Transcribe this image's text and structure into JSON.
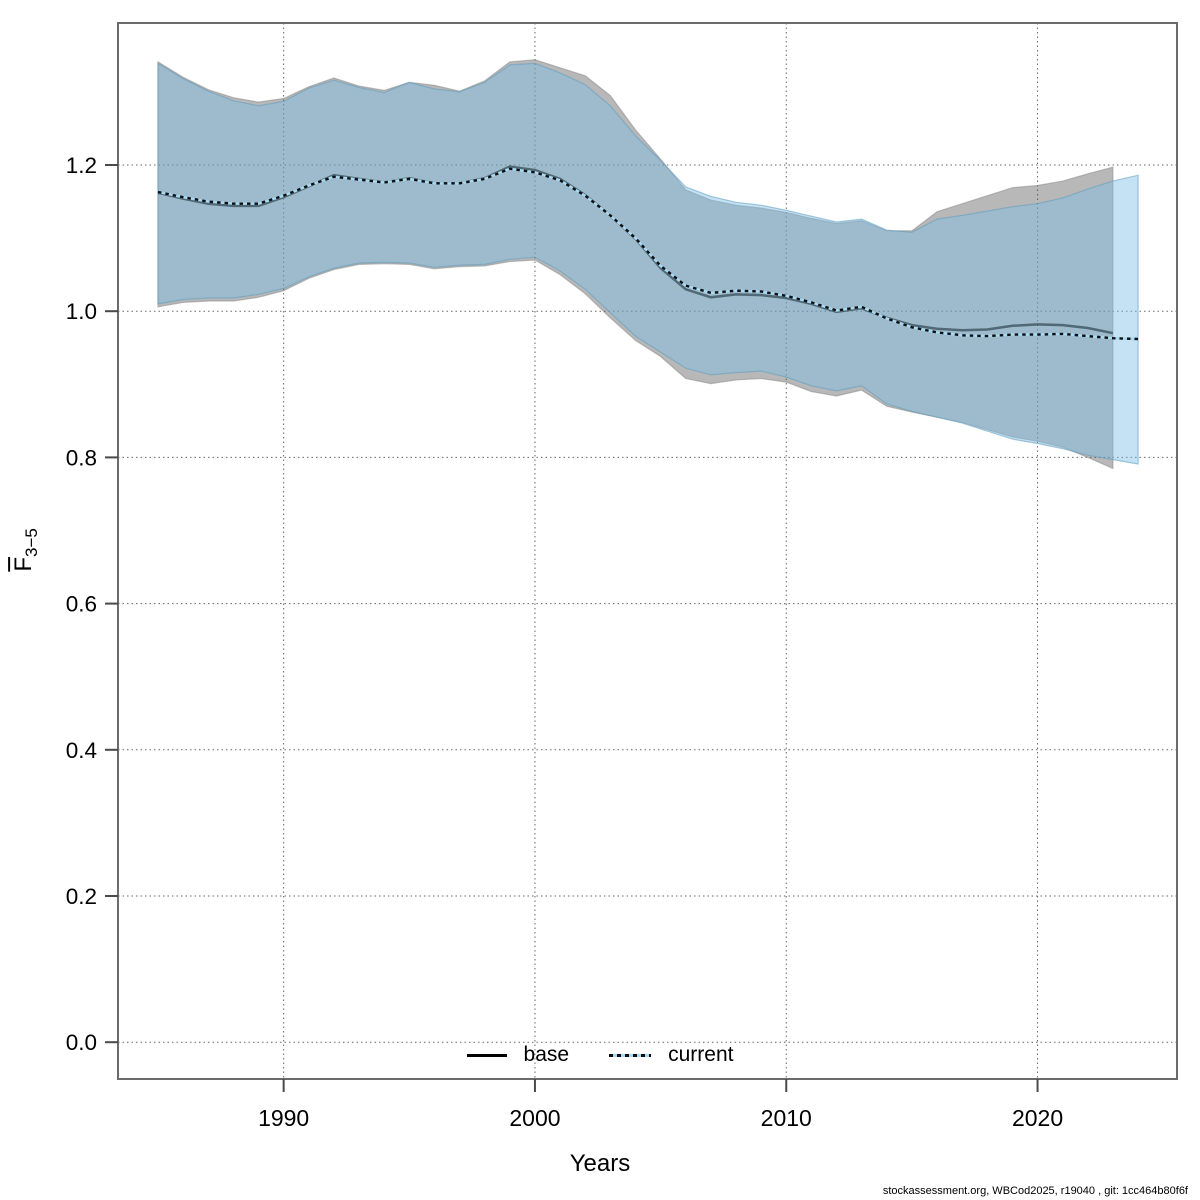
{
  "footer": {
    "text": "stockassessment.org, WBCod2025, r19040 , git: 1cc464b80f6f"
  },
  "chart_data": {
    "type": "line",
    "title": "",
    "xlabel": "Years",
    "ylabel": {
      "main": "F",
      "overline": true,
      "sub": "3−5"
    },
    "xlim": [
      1983.4,
      2025.6
    ],
    "ylim": [
      -0.05,
      1.39
    ],
    "xticks": [
      1990,
      2000,
      2010,
      2020
    ],
    "yticks": [
      0.0,
      0.2,
      0.4,
      0.6,
      0.8,
      1.0,
      1.2
    ],
    "ytick_labels": [
      "0.0",
      "0.2",
      "0.4",
      "0.6",
      "0.8",
      "1.0",
      "1.2"
    ],
    "grid": "dotted",
    "legend": {
      "position": "bottom-center",
      "items": [
        {
          "label": "base",
          "style": "solid",
          "color": "#000000"
        },
        {
          "label": "current",
          "style": "dotted",
          "color": "#77b5d9"
        }
      ]
    },
    "series": [
      {
        "name": "base",
        "band_fill": "#555555",
        "band_opacity": 0.42,
        "band_edge": "#8a8a8a",
        "line_color": "#1e323c",
        "line_style": "solid",
        "years": [
          1985,
          1986,
          1987,
          1988,
          1989,
          1990,
          1991,
          1992,
          1993,
          1994,
          1995,
          1996,
          1997,
          1998,
          1999,
          2000,
          2001,
          2002,
          2003,
          2004,
          2005,
          2006,
          2007,
          2008,
          2009,
          2010,
          2011,
          2012,
          2013,
          2014,
          2015,
          2016,
          2017,
          2018,
          2019,
          2020,
          2021,
          2022,
          2023
        ],
        "center": [
          1.162,
          1.154,
          1.147,
          1.144,
          1.144,
          1.156,
          1.171,
          1.186,
          1.181,
          1.176,
          1.182,
          1.175,
          1.175,
          1.182,
          1.198,
          1.193,
          1.181,
          1.159,
          1.131,
          1.099,
          1.059,
          1.03,
          1.019,
          1.023,
          1.022,
          1.018,
          1.01,
          0.999,
          1.004,
          0.991,
          0.981,
          0.976,
          0.974,
          0.975,
          0.98,
          0.982,
          0.981,
          0.977,
          0.97
        ],
        "upper": [
          1.341,
          1.32,
          1.303,
          1.292,
          1.286,
          1.291,
          1.307,
          1.319,
          1.308,
          1.302,
          1.313,
          1.309,
          1.301,
          1.315,
          1.341,
          1.344,
          1.333,
          1.322,
          1.295,
          1.248,
          1.208,
          1.166,
          1.152,
          1.145,
          1.141,
          1.135,
          1.127,
          1.12,
          1.124,
          1.11,
          1.11,
          1.136,
          1.147,
          1.158,
          1.169,
          1.172,
          1.178,
          1.188,
          1.197
        ],
        "lower": [
          1.006,
          1.012,
          1.014,
          1.014,
          1.019,
          1.028,
          1.045,
          1.057,
          1.064,
          1.065,
          1.064,
          1.058,
          1.061,
          1.062,
          1.068,
          1.07,
          1.05,
          1.024,
          0.991,
          0.96,
          0.938,
          0.908,
          0.901,
          0.906,
          0.908,
          0.903,
          0.89,
          0.884,
          0.892,
          0.87,
          0.862,
          0.855,
          0.848,
          0.838,
          0.828,
          0.822,
          0.814,
          0.8,
          0.785
        ]
      },
      {
        "name": "current",
        "band_fill": "#7dbee4",
        "band_opacity": 0.45,
        "band_edge": "#5f9dbf",
        "line_color": "#000000",
        "line_style": "dotted",
        "line_under_color": "#a9d9f2",
        "years": [
          1985,
          1986,
          1987,
          1988,
          1989,
          1990,
          1991,
          1992,
          1993,
          1994,
          1995,
          1996,
          1997,
          1998,
          1999,
          2000,
          2001,
          2002,
          2003,
          2004,
          2005,
          2006,
          2007,
          2008,
          2009,
          2010,
          2011,
          2012,
          2013,
          2014,
          2015,
          2016,
          2017,
          2018,
          2019,
          2020,
          2021,
          2022,
          2023,
          2024
        ],
        "center": [
          1.163,
          1.156,
          1.15,
          1.147,
          1.147,
          1.158,
          1.172,
          1.184,
          1.18,
          1.176,
          1.181,
          1.175,
          1.175,
          1.181,
          1.195,
          1.19,
          1.179,
          1.158,
          1.131,
          1.1,
          1.062,
          1.035,
          1.025,
          1.028,
          1.027,
          1.021,
          1.012,
          1.001,
          1.006,
          0.99,
          0.978,
          0.971,
          0.967,
          0.966,
          0.968,
          0.968,
          0.969,
          0.966,
          0.963,
          0.962
        ],
        "upper": [
          1.339,
          1.318,
          1.301,
          1.288,
          1.281,
          1.287,
          1.305,
          1.316,
          1.306,
          1.299,
          1.313,
          1.304,
          1.3,
          1.313,
          1.337,
          1.339,
          1.326,
          1.31,
          1.281,
          1.24,
          1.206,
          1.17,
          1.157,
          1.149,
          1.145,
          1.138,
          1.13,
          1.122,
          1.126,
          1.111,
          1.108,
          1.126,
          1.131,
          1.137,
          1.143,
          1.147,
          1.155,
          1.167,
          1.178,
          1.186
        ],
        "lower": [
          1.01,
          1.016,
          1.018,
          1.018,
          1.023,
          1.031,
          1.047,
          1.059,
          1.066,
          1.067,
          1.066,
          1.06,
          1.063,
          1.064,
          1.071,
          1.074,
          1.055,
          1.03,
          0.998,
          0.966,
          0.944,
          0.922,
          0.913,
          0.916,
          0.918,
          0.91,
          0.898,
          0.891,
          0.898,
          0.873,
          0.863,
          0.855,
          0.847,
          0.836,
          0.825,
          0.819,
          0.812,
          0.803,
          0.797,
          0.791
        ]
      }
    ]
  }
}
